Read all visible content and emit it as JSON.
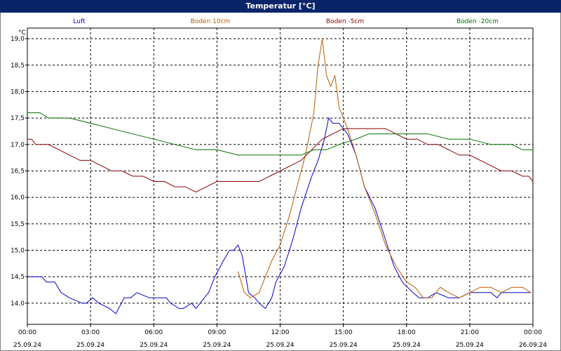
{
  "window": {
    "title": "Temperatur [°C]"
  },
  "colors": {
    "titlebar": "#0a246a",
    "grid": "#000000"
  },
  "chart_data": {
    "type": "line",
    "title": "Temperatur [°C]",
    "ylabel": "°C",
    "xlabel": "",
    "xlim_hours": [
      0,
      24
    ],
    "ylim": [
      13.6,
      19.2
    ],
    "grid": true,
    "legend_position": "top",
    "y_ticks": [
      "19,0",
      "18,5",
      "18,0",
      "17,5",
      "17,0",
      "16,5",
      "16,0",
      "15,5",
      "15,0",
      "14,5",
      "14,0"
    ],
    "y_tick_values": [
      19.0,
      18.5,
      18.0,
      17.5,
      17.0,
      16.5,
      16.0,
      15.5,
      15.0,
      14.5,
      14.0
    ],
    "x_ticks": [
      {
        "hour": 0,
        "time": "00:00",
        "date": "25.09.24"
      },
      {
        "hour": 3,
        "time": "03:00",
        "date": "25.09.24"
      },
      {
        "hour": 6,
        "time": "06:00",
        "date": "25.09.24"
      },
      {
        "hour": 9,
        "time": "09:00",
        "date": "25.09.24"
      },
      {
        "hour": 12,
        "time": "12:00",
        "date": "25.09.24"
      },
      {
        "hour": 15,
        "time": "15:00",
        "date": "25.09.24"
      },
      {
        "hour": 18,
        "time": "18:00",
        "date": "25.09.24"
      },
      {
        "hour": 21,
        "time": "21:00",
        "date": "25.09.24"
      },
      {
        "hour": 24,
        "time": "00:00",
        "date": "26.09.24"
      }
    ],
    "series": [
      {
        "name": "Luft",
        "color": "#0000cc",
        "x": [
          0,
          0.7,
          0.9,
          1.3,
          1.6,
          2.0,
          2.6,
          2.8,
          3.1,
          3.4,
          3.9,
          4.2,
          4.6,
          4.9,
          5.2,
          5.8,
          6.2,
          6.6,
          6.8,
          7.2,
          7.4,
          7.8,
          8.0,
          8.6,
          8.9,
          9.3,
          9.6,
          9.8,
          10.0,
          10.2,
          10.5,
          10.8,
          11.0,
          11.3,
          11.6,
          11.8,
          12.2,
          12.6,
          13.0,
          13.5,
          13.8,
          14.1,
          14.3,
          14.5,
          14.8,
          15.2,
          15.6,
          16.0,
          16.5,
          17.0,
          17.4,
          17.8,
          18.3,
          18.6,
          19.0,
          19.4,
          20.0,
          20.5,
          21.0,
          21.5,
          22.0,
          22.3,
          22.5,
          23.0,
          23.5,
          23.9
        ],
        "y": [
          14.5,
          14.5,
          14.4,
          14.4,
          14.2,
          14.1,
          14.0,
          14.0,
          14.1,
          14.0,
          13.9,
          13.8,
          14.1,
          14.1,
          14.2,
          14.1,
          14.1,
          14.1,
          14.0,
          13.9,
          13.9,
          14.0,
          13.9,
          14.2,
          14.5,
          14.8,
          15.0,
          15.0,
          15.1,
          14.9,
          14.2,
          14.1,
          14.0,
          13.9,
          14.1,
          14.4,
          14.7,
          15.2,
          15.8,
          16.4,
          16.7,
          17.1,
          17.5,
          17.4,
          17.4,
          17.2,
          16.8,
          16.2,
          15.8,
          15.2,
          14.7,
          14.4,
          14.2,
          14.1,
          14.1,
          14.2,
          14.1,
          14.1,
          14.2,
          14.2,
          14.2,
          14.1,
          14.2,
          14.2,
          14.2,
          14.2
        ]
      },
      {
        "name": "Boden 10cm",
        "color": "#b85a00",
        "x": [
          10.0,
          10.3,
          10.6,
          11.0,
          11.3,
          11.6,
          12.0,
          12.4,
          12.8,
          13.2,
          13.6,
          13.8,
          14.0,
          14.2,
          14.4,
          14.6,
          14.8,
          15.2,
          15.6,
          16.0,
          16.5,
          17.0,
          17.5,
          18.0,
          18.4,
          18.8,
          19.2,
          19.6,
          20.0,
          20.5,
          21.0,
          21.5,
          22.0,
          22.5,
          23.0,
          23.5,
          23.9
        ],
        "y": [
          14.6,
          14.2,
          14.1,
          14.2,
          14.5,
          14.8,
          15.1,
          15.6,
          16.2,
          16.8,
          17.6,
          18.5,
          19.0,
          18.3,
          18.1,
          18.3,
          17.7,
          17.3,
          16.8,
          16.2,
          15.7,
          15.1,
          14.7,
          14.4,
          14.3,
          14.1,
          14.1,
          14.3,
          14.2,
          14.1,
          14.2,
          14.3,
          14.3,
          14.2,
          14.3,
          14.3,
          14.2
        ]
      },
      {
        "name": "Boden -5cm",
        "color": "#8b0000",
        "x": [
          0,
          0.2,
          0.4,
          1.0,
          1.5,
          2.0,
          2.5,
          3.0,
          3.5,
          4.0,
          4.5,
          5.0,
          5.5,
          6.0,
          6.5,
          7.0,
          7.5,
          8.0,
          8.5,
          9.0,
          9.5,
          10.0,
          10.5,
          11.0,
          11.5,
          12.0,
          12.5,
          13.0,
          13.5,
          14.0,
          14.5,
          15.0,
          15.5,
          16.0,
          16.5,
          17.0,
          17.5,
          18.0,
          18.5,
          19.0,
          19.5,
          20.0,
          20.5,
          21.0,
          21.5,
          22.0,
          22.5,
          23.0,
          23.5,
          23.8,
          24.0
        ],
        "y": [
          17.1,
          17.1,
          17.0,
          17.0,
          16.9,
          16.8,
          16.7,
          16.7,
          16.6,
          16.5,
          16.5,
          16.4,
          16.4,
          16.3,
          16.3,
          16.2,
          16.2,
          16.1,
          16.2,
          16.3,
          16.3,
          16.3,
          16.3,
          16.3,
          16.4,
          16.5,
          16.6,
          16.7,
          16.9,
          17.1,
          17.2,
          17.3,
          17.3,
          17.3,
          17.3,
          17.3,
          17.2,
          17.1,
          17.1,
          17.0,
          17.0,
          16.9,
          16.8,
          16.8,
          16.7,
          16.6,
          16.5,
          16.5,
          16.4,
          16.4,
          16.3
        ]
      },
      {
        "name": "Boden -20cm",
        "color": "#007000",
        "x": [
          0,
          0.6,
          1.0,
          2.0,
          3.0,
          4.0,
          5.0,
          6.0,
          7.0,
          8.0,
          9.0,
          10.0,
          11.0,
          12.0,
          13.0,
          13.6,
          14.2,
          14.8,
          15.6,
          16.2,
          17.0,
          18.0,
          19.0,
          20.0,
          21.0,
          22.0,
          23.0,
          23.5,
          24.0
        ],
        "y": [
          17.6,
          17.6,
          17.5,
          17.5,
          17.4,
          17.3,
          17.2,
          17.1,
          17.0,
          16.9,
          16.9,
          16.8,
          16.8,
          16.8,
          16.8,
          16.9,
          16.9,
          17.0,
          17.1,
          17.2,
          17.2,
          17.2,
          17.2,
          17.1,
          17.1,
          17.0,
          17.0,
          16.9,
          16.9
        ]
      }
    ]
  }
}
